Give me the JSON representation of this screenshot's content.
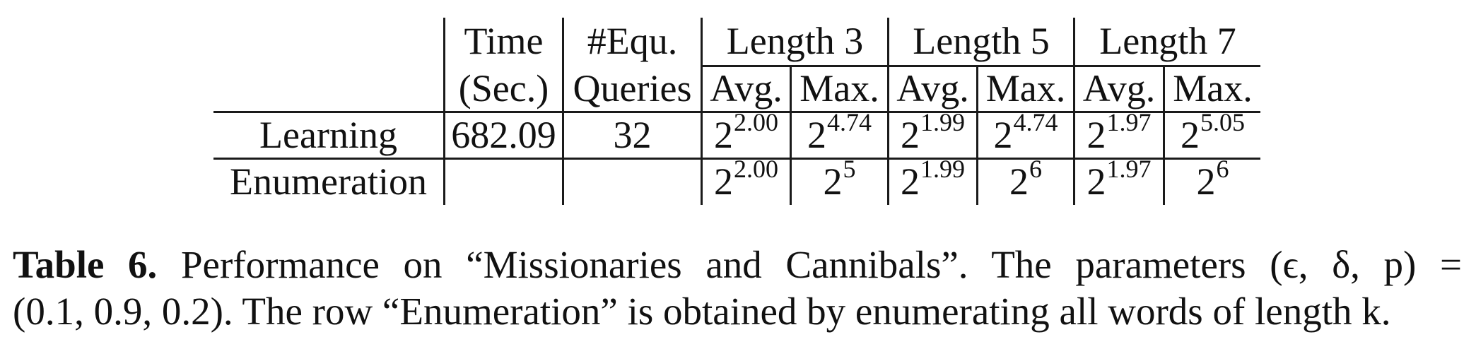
{
  "table": {
    "header_top": {
      "time": "Time",
      "equ": "#Equ.",
      "len3": "Length 3",
      "len5": "Length 5",
      "len7": "Length 7"
    },
    "header_bottom": {
      "time": "(Sec.)",
      "equ": "Queries",
      "avg": "Avg.",
      "max": "Max."
    },
    "rows": [
      {
        "label": "Learning",
        "time": "682.09",
        "equ": "32",
        "cells": [
          {
            "base": "2",
            "exp": "2.00"
          },
          {
            "base": "2",
            "exp": "4.74"
          },
          {
            "base": "2",
            "exp": "1.99"
          },
          {
            "base": "2",
            "exp": "4.74"
          },
          {
            "base": "2",
            "exp": "1.97"
          },
          {
            "base": "2",
            "exp": "5.05"
          }
        ]
      },
      {
        "label": "Enumeration",
        "time": "",
        "equ": "",
        "cells": [
          {
            "base": "2",
            "exp": "2.00"
          },
          {
            "base": "2",
            "exp": "5"
          },
          {
            "base": "2",
            "exp": "1.99"
          },
          {
            "base": "2",
            "exp": "6"
          },
          {
            "base": "2",
            "exp": "1.97"
          },
          {
            "base": "2",
            "exp": "6"
          }
        ]
      }
    ]
  },
  "caption": {
    "label": "Table 6.",
    "line1": " Performance on “Missionaries and Cannibals”. The parameters (ϵ, δ, p) =",
    "line2": "(0.1, 0.9, 0.2). The row “Enumeration” is obtained by enumerating all words of length k."
  }
}
